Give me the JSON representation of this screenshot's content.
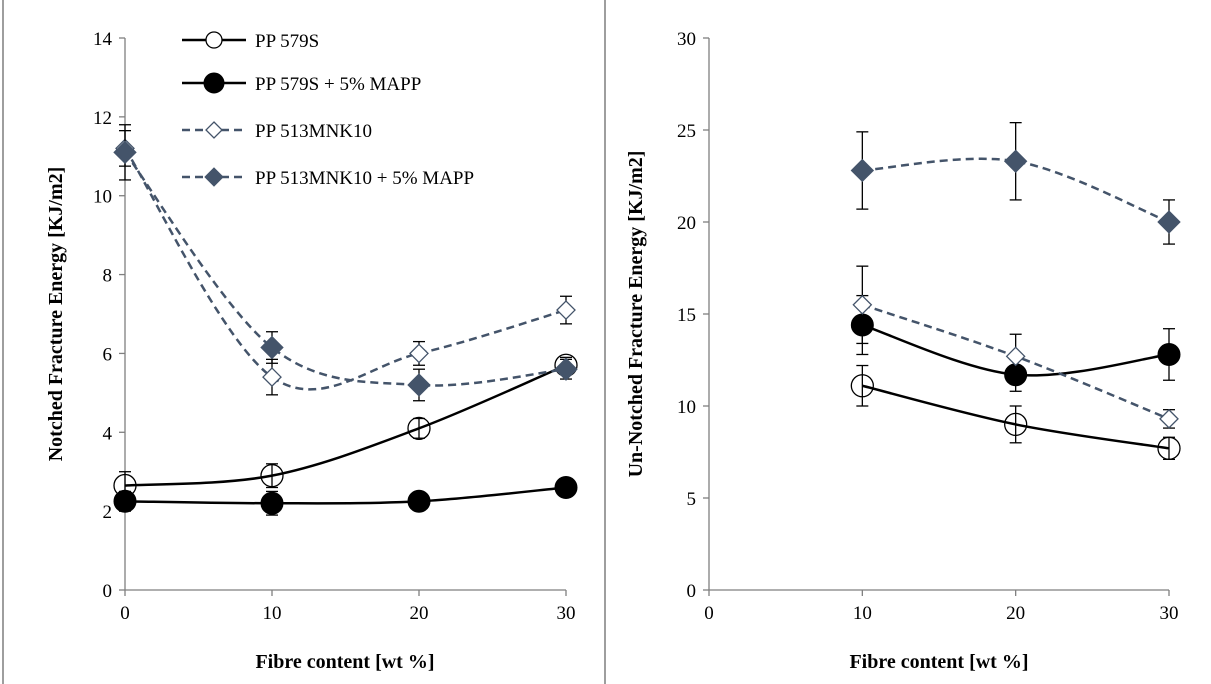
{
  "colors": {
    "solid_series": "#000000",
    "dashed_series": "#44546A",
    "axis": "#7F7F7F",
    "panel_border": "#7F7F7F"
  },
  "chart_data": [
    {
      "type": "line",
      "title": "",
      "xlabel": "Fibre content [wt %]",
      "ylabel": "Notched Fracture Energy [KJ/m2]",
      "xlim": [
        0,
        30
      ],
      "ylim": [
        0,
        14
      ],
      "xticks": [
        0,
        10,
        20,
        30
      ],
      "yticks": [
        0,
        2,
        4,
        6,
        8,
        10,
        12,
        14
      ],
      "grid": false,
      "legend_position": "top-left",
      "series": [
        {
          "name": "PP 579S",
          "line": "solid",
          "marker": "open-circle",
          "x": [
            0,
            10,
            20,
            30
          ],
          "y": [
            2.65,
            2.9,
            4.1,
            5.7
          ],
          "error": [
            0.35,
            0.3,
            0.25,
            0.2
          ]
        },
        {
          "name": "PP 579S + 5% MAPP",
          "line": "solid",
          "marker": "filled-circle",
          "x": [
            0,
            10,
            20,
            30
          ],
          "y": [
            2.25,
            2.2,
            2.25,
            2.6
          ],
          "error": [
            0.25,
            0.3,
            0.2,
            0.2
          ]
        },
        {
          "name": "PP 513MNK10",
          "line": "dashed",
          "marker": "open-diamond",
          "x": [
            0,
            10,
            20,
            30
          ],
          "y": [
            11.2,
            5.4,
            6.0,
            7.1
          ],
          "error": [
            0.45,
            0.45,
            0.3,
            0.35
          ]
        },
        {
          "name": "PP 513MNK10 + 5% MAPP",
          "line": "dashed",
          "marker": "filled-diamond",
          "x": [
            0,
            10,
            20,
            30
          ],
          "y": [
            11.1,
            6.15,
            5.2,
            5.6
          ],
          "error": [
            0.7,
            0.4,
            0.4,
            0.25
          ]
        }
      ]
    },
    {
      "type": "line",
      "title": "",
      "xlabel": "Fibre content [wt %]",
      "ylabel": "Un-Notched Fracture Energy [KJ/m2]",
      "xlim": [
        0,
        30
      ],
      "ylim": [
        0,
        30
      ],
      "xticks": [
        0,
        10,
        20,
        30
      ],
      "yticks": [
        0,
        5,
        10,
        15,
        20,
        25,
        30
      ],
      "grid": false,
      "legend_position": "none",
      "series": [
        {
          "name": "PP 579S",
          "line": "solid",
          "marker": "open-circle",
          "x": [
            10,
            20,
            30
          ],
          "y": [
            11.1,
            9.0,
            7.7
          ],
          "error": [
            1.1,
            1.0,
            0.6
          ]
        },
        {
          "name": "PP 579S + 5% MAPP",
          "line": "solid",
          "marker": "filled-circle",
          "x": [
            10,
            20,
            30
          ],
          "y": [
            14.4,
            11.7,
            12.8
          ],
          "error": [
            1.6,
            0.9,
            1.4
          ]
        },
        {
          "name": "PP 513MNK10",
          "line": "dashed",
          "marker": "open-diamond",
          "x": [
            10,
            20,
            30
          ],
          "y": [
            15.5,
            12.7,
            9.3
          ],
          "error": [
            2.1,
            1.2,
            0.5
          ]
        },
        {
          "name": "PP 513MNK10 + 5% MAPP",
          "line": "dashed",
          "marker": "filled-diamond",
          "x": [
            10,
            20,
            30
          ],
          "y": [
            22.8,
            23.3,
            20.0
          ],
          "error": [
            2.1,
            2.1,
            1.2
          ]
        }
      ]
    }
  ]
}
